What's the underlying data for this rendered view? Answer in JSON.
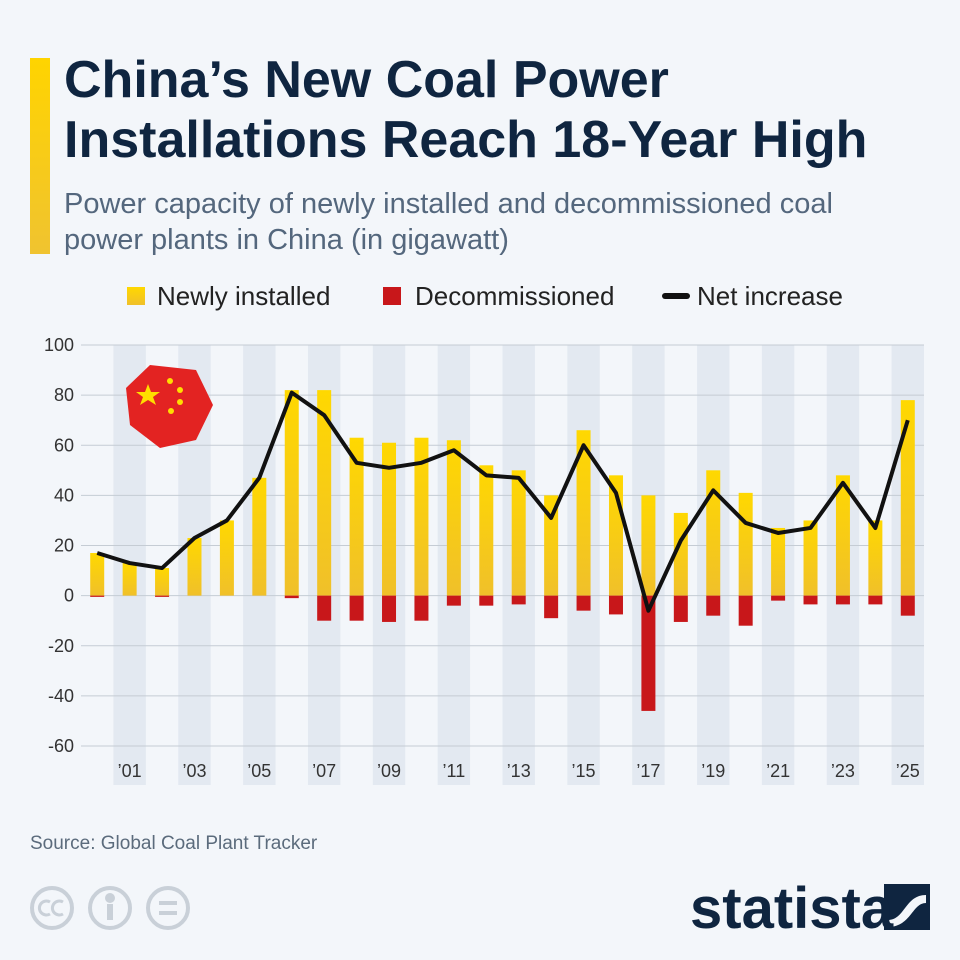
{
  "chart_data": {
    "type": "bar",
    "title": "China’s New Coal Power Installations Reach 18-Year High",
    "subtitle": "Power capacity of newly installed and decommissioned coal power plants in China (in gigawatt)",
    "categories": [
      null,
      "’01",
      null,
      "’03",
      null,
      "’05",
      null,
      "’07",
      null,
      "’09",
      null,
      "’11",
      null,
      "’13",
      null,
      "’15",
      null,
      "’17",
      null,
      "’19",
      null,
      "’21",
      null,
      "’23",
      null,
      "’25"
    ],
    "series": [
      {
        "name": "Newly installed",
        "type": "bar",
        "color": "#f5cf0a",
        "values": [
          17,
          13,
          11,
          23,
          30,
          47,
          82,
          82,
          63,
          61,
          63,
          62,
          52,
          50,
          40,
          66,
          48,
          40,
          33,
          50,
          41,
          27,
          30,
          48,
          30,
          78
        ]
      },
      {
        "name": "Decommissioned",
        "type": "bar",
        "color": "#c8171a",
        "values": [
          -0.5,
          0,
          -0.5,
          0,
          0,
          0,
          -1,
          -10,
          -10,
          -10.5,
          -10,
          -4,
          -4,
          -3.5,
          -9,
          -6,
          -7.5,
          -46,
          -10.5,
          -8,
          -12,
          -2,
          -3.5,
          -3.5,
          -3.5,
          -8
        ]
      },
      {
        "name": "Net increase",
        "type": "line",
        "color": "#111111",
        "values": [
          17,
          13,
          11,
          23,
          30,
          47,
          81,
          72,
          53,
          51,
          53,
          58,
          48,
          47,
          31,
          60,
          41,
          -6,
          22,
          42,
          29,
          25,
          27,
          45,
          27,
          70
        ]
      }
    ],
    "ylim": [
      -60,
      100
    ],
    "yticks": [
      -60,
      -40,
      -20,
      0,
      20,
      40,
      60,
      80,
      100
    ],
    "grid": true,
    "legend": "top",
    "source": "Source: Global Coal Plant Tracker",
    "brand": "statista"
  }
}
